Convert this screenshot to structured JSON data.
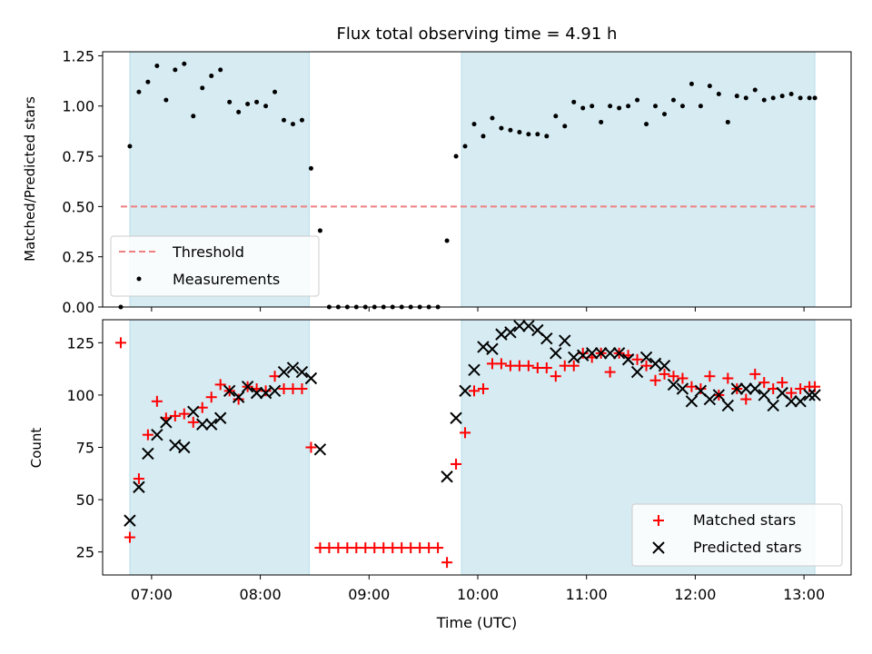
{
  "title": "Flux total observing time = 4.91 h",
  "chart_data": [
    {
      "type": "scatter",
      "ylabel": "Matched/Predicted stars",
      "xlim": [
        "06:33",
        "13:26"
      ],
      "ylim": [
        0,
        1.27
      ],
      "yticks": [
        0,
        0.25,
        0.5,
        0.75,
        1.0,
        1.25
      ],
      "ytick_labels": [
        "0.00",
        "0.25",
        "0.50",
        "0.75",
        "1.00",
        "1.25"
      ],
      "shaded_spans": [
        [
          "06:48",
          "08:27"
        ],
        [
          "09:51",
          "13:06"
        ]
      ],
      "threshold": {
        "name": "Threshold",
        "value": 0.5,
        "x_range": [
          "06:43",
          "13:06"
        ],
        "color": "#f08080"
      },
      "legend": [
        "Threshold",
        "Measurements"
      ],
      "legend_position": "lower-left",
      "series": [
        {
          "name": "Measurements",
          "color": "#000000",
          "x": [
            "06:43",
            "06:48",
            "06:53",
            "06:58",
            "07:03",
            "07:08",
            "07:13",
            "07:18",
            "07:23",
            "07:28",
            "07:33",
            "07:38",
            "07:43",
            "07:48",
            "07:53",
            "07:58",
            "08:03",
            "08:08",
            "08:13",
            "08:18",
            "08:23",
            "08:28",
            "08:33",
            "08:38",
            "08:43",
            "08:48",
            "08:53",
            "08:58",
            "09:03",
            "09:08",
            "09:13",
            "09:18",
            "09:23",
            "09:28",
            "09:33",
            "09:38",
            "09:43",
            "09:48",
            "09:53",
            "09:58",
            "10:03",
            "10:08",
            "10:13",
            "10:18",
            "10:23",
            "10:28",
            "10:33",
            "10:38",
            "10:43",
            "10:48",
            "10:53",
            "10:58",
            "11:03",
            "11:08",
            "11:13",
            "11:18",
            "11:23",
            "11:28",
            "11:33",
            "11:38",
            "11:43",
            "11:48",
            "11:53",
            "11:58",
            "12:03",
            "12:08",
            "12:13",
            "12:18",
            "12:23",
            "12:28",
            "12:33",
            "12:38",
            "12:43",
            "12:48",
            "12:53",
            "12:58",
            "13:03",
            "13:06"
          ],
          "y": [
            0.0,
            0.8,
            1.07,
            1.12,
            1.2,
            1.03,
            1.18,
            1.21,
            0.95,
            1.09,
            1.15,
            1.18,
            1.02,
            0.97,
            1.01,
            1.02,
            1.0,
            1.07,
            0.93,
            0.91,
            0.93,
            0.69,
            0.38,
            0.0,
            0.0,
            0.0,
            0.0,
            0.0,
            0.0,
            0.0,
            0.0,
            0.0,
            0.0,
            0.0,
            0.0,
            0.0,
            0.33,
            0.75,
            0.8,
            0.91,
            0.85,
            0.94,
            0.89,
            0.88,
            0.87,
            0.86,
            0.86,
            0.85,
            0.95,
            0.9,
            1.02,
            0.99,
            1.0,
            0.92,
            1.0,
            0.99,
            1.0,
            1.03,
            0.91,
            1.0,
            0.96,
            1.03,
            1.0,
            1.11,
            1.0,
            1.1,
            1.06,
            0.92,
            1.05,
            1.04,
            1.08,
            1.03,
            1.04,
            1.05,
            1.06,
            1.04,
            1.04,
            1.04
          ]
        }
      ]
    },
    {
      "type": "scatter",
      "xlabel": "Time (UTC)",
      "ylabel": "Count",
      "xlim": [
        "06:33",
        "13:26"
      ],
      "ylim": [
        14,
        136
      ],
      "yticks": [
        25,
        50,
        75,
        100,
        125
      ],
      "xticks": [
        "07:00",
        "08:00",
        "09:00",
        "10:00",
        "11:00",
        "12:00",
        "13:00"
      ],
      "shaded_spans": [
        [
          "06:48",
          "08:27"
        ],
        [
          "09:51",
          "13:06"
        ]
      ],
      "legend": [
        "Matched stars",
        "Predicted stars"
      ],
      "legend_position": "lower-right",
      "series": [
        {
          "name": "Matched stars",
          "marker": "+",
          "color": "#ff0000",
          "x": [
            "06:43",
            "06:48",
            "06:53",
            "06:58",
            "07:03",
            "07:08",
            "07:13",
            "07:18",
            "07:23",
            "07:28",
            "07:33",
            "07:38",
            "07:43",
            "07:48",
            "07:53",
            "07:58",
            "08:03",
            "08:08",
            "08:13",
            "08:18",
            "08:23",
            "08:28",
            "08:33",
            "08:38",
            "08:43",
            "08:48",
            "08:53",
            "08:58",
            "09:03",
            "09:08",
            "09:13",
            "09:18",
            "09:23",
            "09:28",
            "09:33",
            "09:38",
            "09:43",
            "09:48",
            "09:53",
            "09:58",
            "10:03",
            "10:08",
            "10:13",
            "10:18",
            "10:23",
            "10:28",
            "10:33",
            "10:38",
            "10:43",
            "10:48",
            "10:53",
            "10:58",
            "11:03",
            "11:08",
            "11:13",
            "11:18",
            "11:23",
            "11:28",
            "11:33",
            "11:38",
            "11:43",
            "11:48",
            "11:53",
            "11:58",
            "12:03",
            "12:08",
            "12:13",
            "12:18",
            "12:23",
            "12:28",
            "12:33",
            "12:38",
            "12:43",
            "12:48",
            "12:53",
            "12:58",
            "13:03",
            "13:06"
          ],
          "y": [
            125,
            32,
            60,
            81,
            97,
            89,
            90,
            91,
            87,
            94,
            99,
            105,
            102,
            98,
            104,
            103,
            102,
            109,
            103,
            103,
            103,
            75,
            27,
            27,
            27,
            27,
            27,
            27,
            27,
            27,
            27,
            27,
            27,
            27,
            27,
            27,
            20,
            67,
            82,
            102,
            103,
            115,
            115,
            114,
            114,
            114,
            113,
            113,
            109,
            114,
            114,
            120,
            118,
            120,
            111,
            120,
            119,
            117,
            114,
            107,
            110,
            109,
            108,
            104,
            103,
            109,
            100,
            108,
            103,
            98,
            110,
            106,
            103,
            106,
            101,
            103,
            104,
            104
          ]
        },
        {
          "name": "Predicted stars",
          "marker": "x",
          "color": "#000000",
          "x": [
            "06:48",
            "06:53",
            "06:58",
            "07:03",
            "07:08",
            "07:13",
            "07:18",
            "07:23",
            "07:28",
            "07:33",
            "07:38",
            "07:43",
            "07:48",
            "07:53",
            "07:58",
            "08:03",
            "08:08",
            "08:13",
            "08:18",
            "08:23",
            "08:28",
            "08:33",
            "09:43",
            "09:48",
            "09:53",
            "09:58",
            "10:03",
            "10:08",
            "10:13",
            "10:18",
            "10:23",
            "10:28",
            "10:33",
            "10:38",
            "10:43",
            "10:48",
            "10:53",
            "10:58",
            "11:03",
            "11:08",
            "11:13",
            "11:18",
            "11:23",
            "11:28",
            "11:33",
            "11:38",
            "11:43",
            "11:48",
            "11:53",
            "11:58",
            "12:03",
            "12:08",
            "12:13",
            "12:18",
            "12:23",
            "12:28",
            "12:33",
            "12:38",
            "12:43",
            "12:48",
            "12:53",
            "12:58",
            "13:03",
            "13:06"
          ],
          "y": [
            40,
            56,
            72,
            81,
            87,
            76,
            75,
            92,
            86,
            86,
            89,
            102,
            99,
            104,
            101,
            101,
            102,
            111,
            113,
            111,
            108,
            74,
            61,
            89,
            102,
            112,
            123,
            122,
            129,
            130,
            133,
            133,
            131,
            127,
            120,
            126,
            118,
            119,
            120,
            120,
            120,
            120,
            117,
            111,
            118,
            115,
            114,
            105,
            103,
            97,
            102,
            98,
            100,
            95,
            103,
            103,
            103,
            100,
            95,
            101,
            97,
            97,
            100,
            100
          ]
        }
      ]
    }
  ]
}
